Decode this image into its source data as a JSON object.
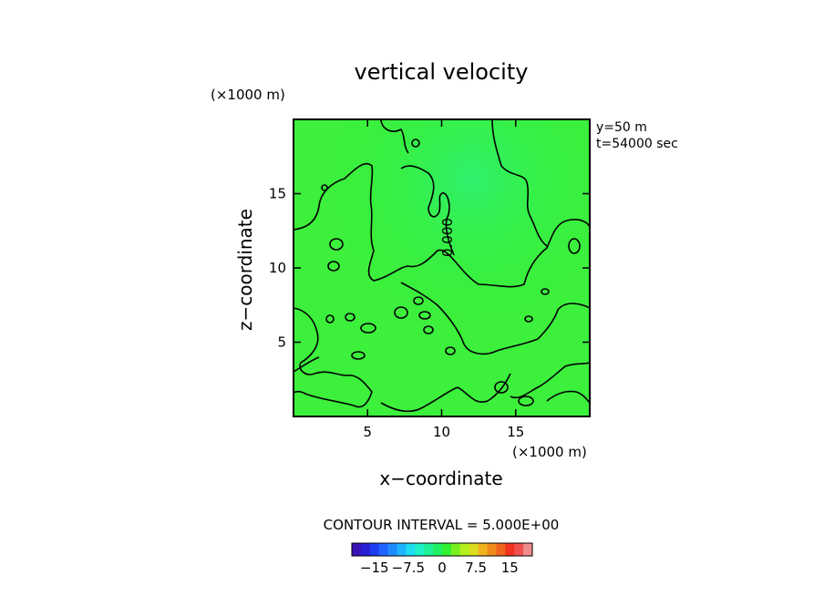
{
  "chart_data": {
    "type": "heatmap",
    "title": "vertical velocity",
    "xlabel": "x−coordinate",
    "ylabel": "z−coordinate",
    "x_unit": "(×1000 m)",
    "y_unit": "(×1000 m)",
    "xlim": [
      0,
      20
    ],
    "ylim": [
      0,
      20
    ],
    "x_ticks": [
      {
        "value": 5,
        "label": "5"
      },
      {
        "value": 10,
        "label": "10"
      },
      {
        "value": 15,
        "label": "15"
      }
    ],
    "y_ticks": [
      {
        "value": 5,
        "label": "5"
      },
      {
        "value": 10,
        "label": "10"
      },
      {
        "value": 15,
        "label": "15"
      }
    ],
    "annotations": [
      "y=50  m",
      "t=54000 sec"
    ],
    "contour_level_label": "0.000",
    "contour_interval_text": "CONTOUR INTERVAL = 5.000E+00",
    "field_description_value": 0,
    "colorbar": {
      "min": -20,
      "max": 20,
      "tick_values": [
        -15,
        -7.5,
        0,
        7.5,
        15
      ],
      "tick_labels": [
        "−15",
        "−7.5",
        "0",
        "7.5",
        "15"
      ],
      "colors": [
        "#3c14b4",
        "#2820d2",
        "#1e3cf0",
        "#1e64ff",
        "#1e8cff",
        "#1eb4ff",
        "#1edcf0",
        "#1ef0c8",
        "#1ef096",
        "#1ef064",
        "#32f032",
        "#78f01e",
        "#b4f01e",
        "#dcdc1e",
        "#f0b41e",
        "#f08c1e",
        "#f0641e",
        "#f0321e",
        "#f05050",
        "#f08c8c"
      ]
    }
  }
}
